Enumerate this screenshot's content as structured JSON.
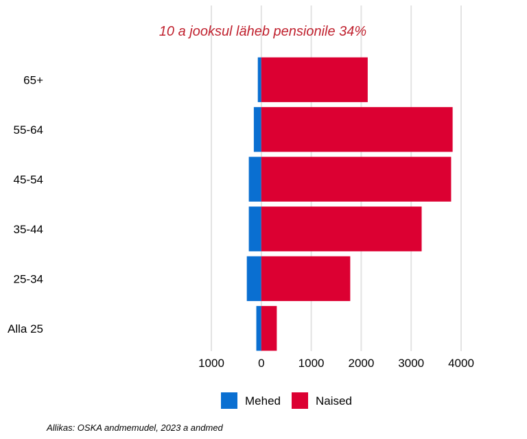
{
  "chart_data": {
    "type": "bar",
    "orientation": "horizontal",
    "layout": "diverging",
    "title": "10 a jooksul läheb pensionile 34%",
    "title_color": "#c0222f",
    "categories": [
      "Alla 25",
      "25-34",
      "35-44",
      "45-54",
      "55-64",
      "65+"
    ],
    "series": [
      {
        "name": "Mehed",
        "color": "#0a6fd1",
        "side": "left",
        "values": [
          100,
          290,
          250,
          250,
          150,
          70
        ]
      },
      {
        "name": "Naised",
        "color": "#dc0032",
        "side": "right",
        "values": [
          310,
          1780,
          3210,
          3800,
          3830,
          2130
        ]
      }
    ],
    "xlim": [
      -1000,
      4000
    ],
    "x_ticks": [
      {
        "value": -1000,
        "label": "1000"
      },
      {
        "value": 0,
        "label": "0"
      },
      {
        "value": 1000,
        "label": "1000"
      },
      {
        "value": 2000,
        "label": "2000"
      },
      {
        "value": 3000,
        "label": "3000"
      },
      {
        "value": 4000,
        "label": "4000"
      }
    ],
    "grid": "vertical",
    "legend_position": "bottom",
    "source": "Allikas: OSKA andmemudel, 2023 a andmed"
  }
}
